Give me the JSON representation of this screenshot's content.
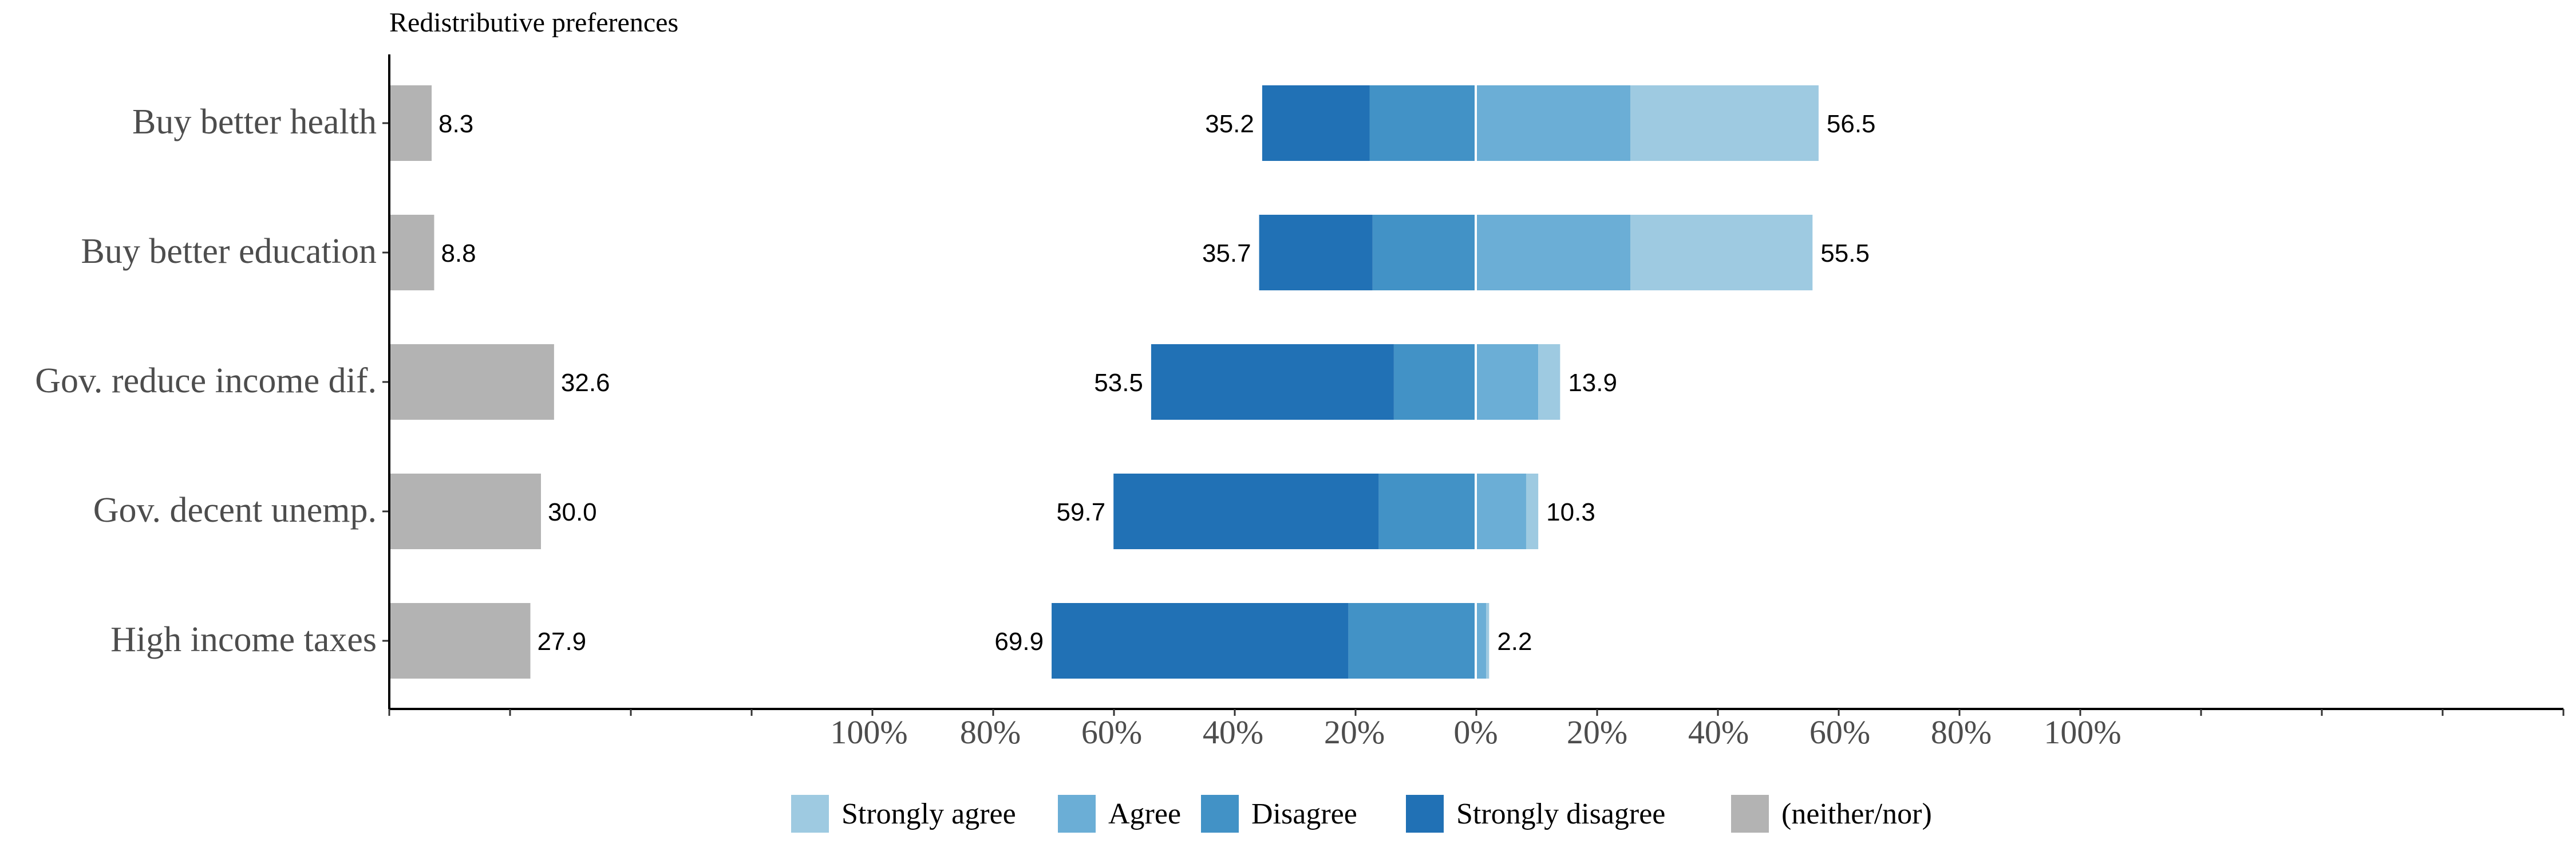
{
  "chart_data": {
    "type": "bar",
    "title": "Redistributive preferences",
    "categories": [
      "Buy better health",
      "Buy better education",
      "Gov. reduce income dif.",
      "Gov. decent unemp.",
      "High income taxes"
    ],
    "neutral": {
      "name": "(neither/nor)",
      "values": [
        8.3,
        8.8,
        32.6,
        30.0,
        27.9
      ],
      "labels": [
        "8.3",
        "8.8",
        "32.6",
        "30.0",
        "27.9"
      ]
    },
    "series": [
      {
        "name": "Strongly agree",
        "side": "agree",
        "values": [
          31.0,
          30.0,
          3.6,
          2.0,
          0.5
        ]
      },
      {
        "name": "Agree",
        "side": "agree",
        "values": [
          25.5,
          25.5,
          10.3,
          8.3,
          1.7
        ]
      },
      {
        "name": "Disagree",
        "side": "disagree",
        "values": [
          17.5,
          17.0,
          13.5,
          16.0,
          21.0
        ]
      },
      {
        "name": "Strongly disagree",
        "side": "disagree",
        "values": [
          17.7,
          18.7,
          40.0,
          43.7,
          48.9
        ]
      }
    ],
    "totals": {
      "agree": [
        56.5,
        55.5,
        13.9,
        10.3,
        2.2
      ],
      "agree_labels": [
        "56.5",
        "55.5",
        "13.9",
        "10.3",
        "2.2"
      ],
      "disagree": [
        35.2,
        35.7,
        53.5,
        59.7,
        69.9
      ],
      "disagree_labels": [
        "35.2",
        "35.7",
        "53.5",
        "59.7",
        "69.9"
      ]
    },
    "x_ticks": [
      -100,
      -80,
      -60,
      -40,
      -20,
      0,
      20,
      40,
      60,
      80,
      100
    ],
    "x_tick_labels": [
      "100%",
      "80%",
      "60%",
      "40%",
      "20%",
      "0%",
      "20%",
      "40%",
      "60%",
      "80%",
      "100%"
    ],
    "xlim": [
      -100,
      100
    ],
    "legend": {
      "position": "bottom",
      "items": [
        "Strongly agree",
        "Agree",
        "Disagree",
        "Strongly disagree",
        "(neither/nor)"
      ]
    },
    "colors": {
      "Strongly agree": "#9ecae1",
      "Agree": "#6baed6",
      "Disagree": "#4292c6",
      "Strongly disagree": "#2171b5",
      "(neither/nor)": "#b3b3b3"
    }
  }
}
